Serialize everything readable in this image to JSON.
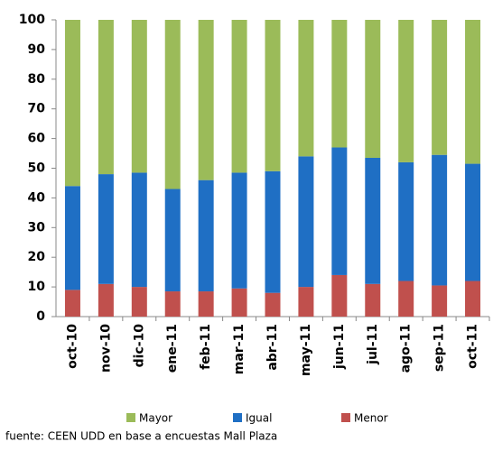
{
  "chart_data": {
    "type": "stacked_bar",
    "categories": [
      "oct-10",
      "nov-10",
      "dic-10",
      "ene-11",
      "feb-11",
      "mar-11",
      "abr-11",
      "may-11",
      "jun-11",
      "jul-11",
      "ago-11",
      "sep-11",
      "oct-11"
    ],
    "series": [
      {
        "name": "Mayor",
        "color": "#9bbb59",
        "values": [
          56,
          52,
          51.5,
          57,
          54,
          51.5,
          51,
          46,
          43,
          46.5,
          48,
          45.5,
          48.5
        ]
      },
      {
        "name": "Igual",
        "color": "#1f6fc4",
        "values": [
          35,
          37,
          38.5,
          34.5,
          37.5,
          39,
          41,
          44,
          43,
          42.5,
          40,
          44,
          39.5
        ]
      },
      {
        "name": "Menor",
        "color": "#c0504d",
        "values": [
          9,
          11,
          10,
          8.5,
          8.5,
          9.5,
          8,
          10,
          14,
          11,
          12,
          10.5,
          12
        ]
      }
    ],
    "ylim": [
      0,
      100
    ],
    "yticks": [
      0,
      10,
      20,
      30,
      40,
      50,
      60,
      70,
      80,
      90,
      100
    ],
    "legend": "bottom",
    "source": "fuente: CEEN UDD en base a encuestas Mall Plaza"
  }
}
